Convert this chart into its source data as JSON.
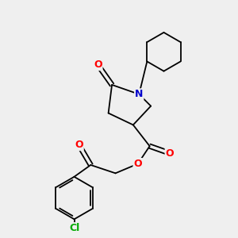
{
  "background_color": "#efefef",
  "figsize": [
    3.0,
    3.0
  ],
  "dpi": 100,
  "atoms": {
    "N": {
      "color": "#0000cc",
      "fontsize": 9
    },
    "O": {
      "color": "#ff0000",
      "fontsize": 9
    },
    "Cl": {
      "color": "#00aa00",
      "fontsize": 8
    }
  },
  "bond_color": "#000000",
  "bond_width": 1.3
}
